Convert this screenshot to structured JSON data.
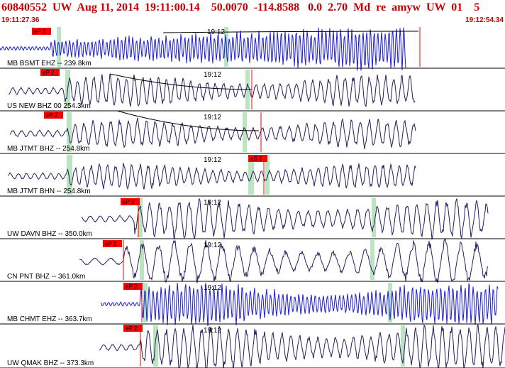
{
  "header": {
    "title": "60840552  UW  Aug 11, 2014  19:11:00.14    50.0070  -114.8588   0.0  2.70  Md  re  amyw  UW  01    5",
    "start_time": "19:11:27.36",
    "end_time": "19:12:54.34",
    "colors": {
      "header_text": "#cc0000",
      "pick": "#ff0000",
      "trace_dark": "#2a1a5e",
      "trace_blue": "#1a1adb",
      "time_marker": "#b9e6bf",
      "divider": "#000000"
    }
  },
  "chart_data": {
    "type": "seismogram",
    "traces": [
      {
        "label": "MB BSMT EHZ -- 239.8km",
        "pick_label": "eP 2",
        "minute_mark": "19:12",
        "color": "blue"
      },
      {
        "label": "US NEW BHZ 00 254.3km",
        "pick_label": "eP 2",
        "minute_mark": "19:12",
        "color": "dark"
      },
      {
        "label": "MB JTMT BHZ -- 254.8km",
        "pick_label": "eP 2",
        "minute_mark": "19:12",
        "color": "dark"
      },
      {
        "label": "MB JTMT BHN -- 254.8km",
        "pick_label": "eS 2",
        "minute_mark": "19:12",
        "color": "dark"
      },
      {
        "label": "UW DAVN BHZ -- 350.0km",
        "pick_label": "eP 3",
        "minute_mark": "19:12",
        "color": "dark"
      },
      {
        "label": "CN PNT BHZ -- 361.0km",
        "pick_label": "eP 2",
        "minute_mark": "19:12",
        "color": "dark"
      },
      {
        "label": "MB CHMT EHZ -- 363.7km",
        "pick_label": "eP 2",
        "minute_mark": "19:12",
        "color": "blue"
      },
      {
        "label": "UW QMAK BHZ -- 373.3km",
        "pick_label": "eP 2",
        "minute_mark": "19:12",
        "color": "dark"
      }
    ]
  }
}
